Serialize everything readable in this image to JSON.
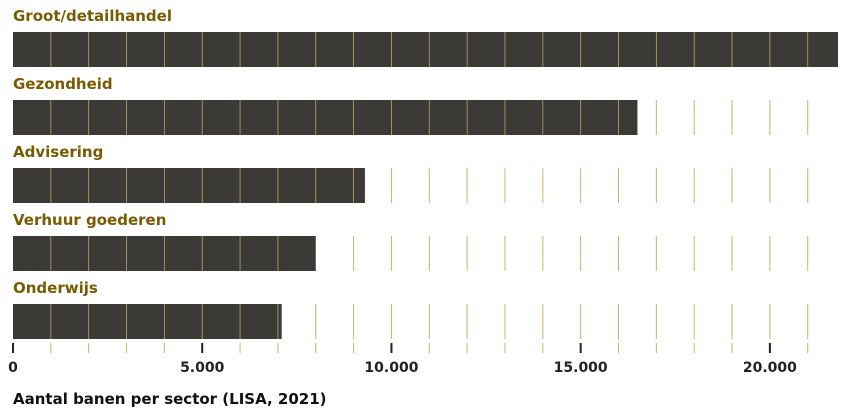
{
  "chart_data": {
    "type": "bar",
    "orientation": "horizontal",
    "categories": [
      "Groot/detailhandel",
      "Gezondheid",
      "Advisering",
      "Verhuur goederen",
      "Onderwijs"
    ],
    "values": [
      21800,
      16500,
      9300,
      8000,
      7100
    ],
    "xlim": [
      0,
      21800
    ],
    "minor_tick_step": 1000,
    "major_ticks": [
      0,
      5000,
      10000,
      15000,
      20000
    ],
    "tick_labels": [
      "0",
      "5.000",
      "10.000",
      "15.000",
      "20.000"
    ],
    "caption": "Aantal banen per sector (LISA, 2021)",
    "grid": true,
    "colors": {
      "bar": "#3b3a36",
      "label": "#7a5a00",
      "grid": "#c8b46e",
      "axis": "#222222",
      "caption": "#111111"
    }
  }
}
